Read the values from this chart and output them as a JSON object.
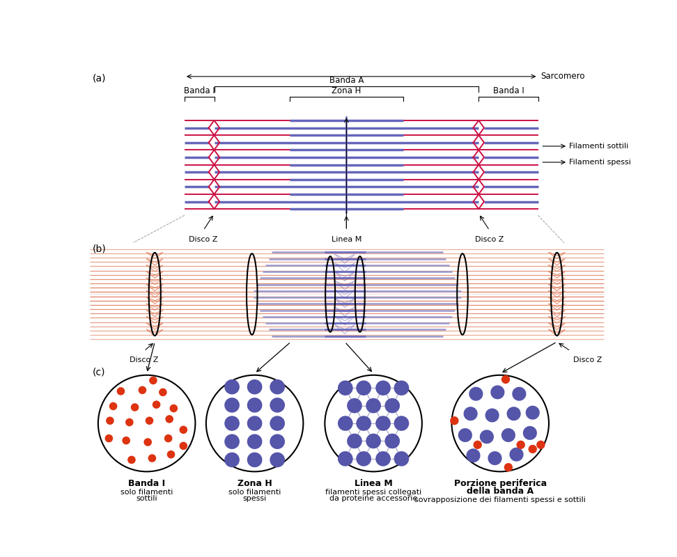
{
  "bg_color": "#ffffff",
  "thin_color": "#cc1144",
  "thick_color": "#6666bb",
  "thin_color_b": "#e08060",
  "thick_color_b": "#9999cc",
  "red_dot_color": "#dd3311",
  "purple_dot_color": "#5555aa",
  "label_a": "(a)",
  "label_b": "(b)",
  "label_c": "(c)",
  "sarcomero_label": "Sarcomero",
  "banda_a_label": "Banda A",
  "banda_i_label": "Banda I",
  "zona_h_label": "Zona H",
  "disco_z_label": "Disco Z",
  "linea_m_label": "Linea M",
  "filamenti_sottili_label": "Filamenti sottili",
  "filamenti_spessi_label": "Filamenti spessi",
  "circle_labels": [
    "Banda I",
    "Zona H",
    "Linea M",
    "Porzione periferica\ndella banda A"
  ],
  "circle_sublabels": [
    "solo filamenti\nsottili",
    "solo filamenti\nspessi",
    "filamenti spessi collegati\nda proteine accessorie",
    "sovrapposizione dei filamenti spessi e sottili"
  ]
}
